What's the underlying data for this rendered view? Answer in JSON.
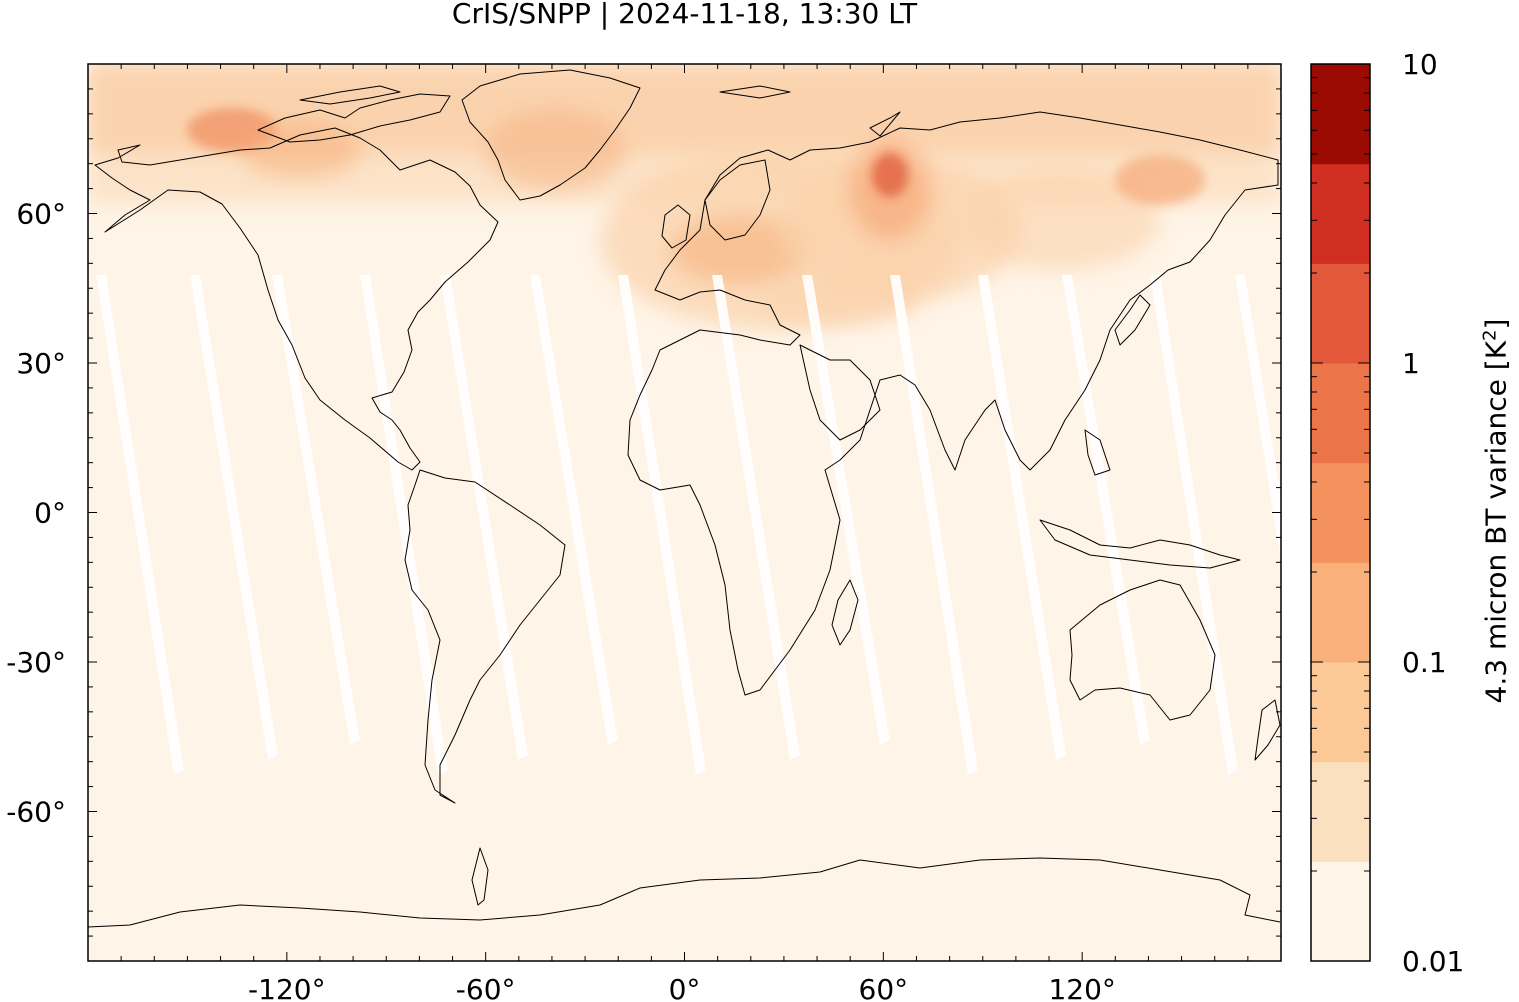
{
  "title": "CrIS/SNPP | 2024-11-18, 13:30 LT",
  "map": {
    "projection": "plate-carree",
    "lon_range": [
      -180,
      180
    ],
    "lat_range": [
      -90,
      90
    ],
    "background_color": "#fef4e7",
    "coastline_color": "#000000",
    "x_ticks": [
      "-120°",
      "-60°",
      "0°",
      "60°",
      "120°"
    ],
    "x_tick_values": [
      -120,
      -60,
      0,
      60,
      120
    ],
    "y_ticks": [
      "60°",
      "30°",
      "0°",
      "-30°",
      "-60°"
    ],
    "y_tick_values": [
      60,
      30,
      0,
      -30,
      -60
    ]
  },
  "colorbar": {
    "label": "4.3 micron BT variance [K",
    "label_sup": "2",
    "label_close": "]",
    "scale": "log",
    "range": [
      0.01,
      10
    ],
    "tick_labels": [
      "10",
      "1",
      "0.1",
      "0.01"
    ],
    "tick_values": [
      10,
      1,
      0.1,
      0.01
    ],
    "colors": [
      "#fef4e7",
      "#fbe0c0",
      "#fbc896",
      "#f9b07b",
      "#f4925d",
      "#ec7449",
      "#e35838",
      "#cf2e20",
      "#9b0a03"
    ]
  }
}
